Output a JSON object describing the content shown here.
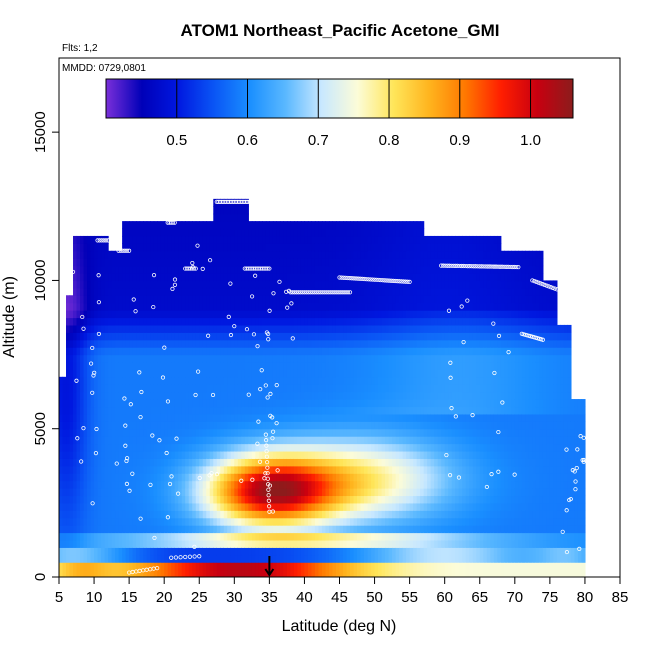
{
  "chart_data": {
    "type": "heatmap",
    "title": "ATOM1 Northeast_Pacific Acetone_GMI",
    "annotations": {
      "flights": "Flts: 1,2",
      "dates": "MMDD: 0729,0801"
    },
    "xlabel": "Latitude (deg N)",
    "ylabel": "Altitude (m)",
    "xlim": [
      5,
      85
    ],
    "ylim": [
      0,
      17500
    ],
    "x_ticks": [
      "5",
      "10",
      "15",
      "20",
      "25",
      "30",
      "35",
      "40",
      "45",
      "50",
      "55",
      "60",
      "65",
      "70",
      "75",
      "80",
      "85"
    ],
    "y_ticks": [
      "0",
      "5000",
      "10000",
      "15000"
    ],
    "colorbar": {
      "range": [
        0.4,
        1.06
      ],
      "ticks": [
        "0.5",
        "0.6",
        "0.7",
        "0.8",
        "0.9",
        "1.0"
      ],
      "colors": [
        "#7a2fd9",
        "#0000b8",
        "#0018e0",
        "#0a55f5",
        "#1a8fff",
        "#5ab8ff",
        "#c8e8ff",
        "#fcfcd8",
        "#ffe65a",
        "#ffb41e",
        "#ff7800",
        "#ff1e00",
        "#c80010",
        "#8c1c1c"
      ]
    },
    "profile_value_ranges": [
      {
        "lat": 5,
        "vmin": 0.48,
        "vmax": 0.56
      },
      {
        "lat": 20,
        "vmin": 0.48,
        "vmax": 1.0
      },
      {
        "lat": 35,
        "vmin": 0.46,
        "vmax": 1.03
      },
      {
        "lat": 50,
        "vmin": 0.5,
        "vmax": 0.86
      },
      {
        "lat": 65,
        "vmin": 0.5,
        "vmax": 0.8
      },
      {
        "lat": 80,
        "vmin": 0.58,
        "vmax": 0.7
      }
    ],
    "flight_latitude_marker": 35,
    "grid": false,
    "legend": "top (horizontal colorbar)"
  }
}
